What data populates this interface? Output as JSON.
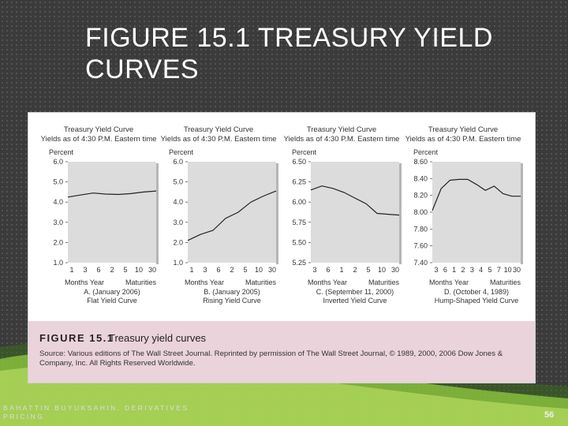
{
  "slide": {
    "title": "FIGURE 15.1 TREASURY YIELD CURVES",
    "footer": "BAHATTIN BUYUKSAHIN, DERIVATIVES PRICING",
    "page_number": "56",
    "colors": {
      "background": "#3b3b3b",
      "caption_bg": "#ead3da",
      "swoosh": "#8cc63f",
      "chart_bg": "#dcdcdc"
    }
  },
  "figure": {
    "label": "FIGURE 15.1",
    "title": "Treasury yield curves",
    "source": "Source: Various editions of The Wall Street Journal. Reprinted by permission of The Wall Street Journal, © 1989, 2000, 2006 Dow Jones & Company, Inc. All Rights Reserved Worldwide."
  },
  "chart_data": [
    {
      "type": "line",
      "header_title": "Treasury Yield Curve",
      "header_subtitle": "Yields as of 4:30 P.M. Eastern time",
      "ylabel": "Percent",
      "xlabel_left": "Months Year",
      "xlabel_right": "Maturities",
      "caption_line1": "A. (January 2006)",
      "caption_line2": "Flat Yield Curve",
      "x_ticks": [
        "1",
        "3",
        "6",
        "2",
        "5",
        "10",
        "30"
      ],
      "y_ticks": [
        "1.0",
        "2.0",
        "3.0",
        "4.0",
        "5.0",
        "6.0"
      ],
      "ylim": [
        1.0,
        6.0
      ],
      "y": [
        4.25,
        4.35,
        4.45,
        4.4,
        4.38,
        4.42,
        4.5,
        4.55
      ],
      "grid": false
    },
    {
      "type": "line",
      "header_title": "Treasury Yield Curve",
      "header_subtitle": "Yields as of 4:30 P.M. Eastern time",
      "ylabel": "Percent",
      "xlabel_left": "Months Year",
      "xlabel_right": "Maturities",
      "caption_line1": "B. (January 2005)",
      "caption_line2": "Rising Yield Curve",
      "x_ticks": [
        "1",
        "3",
        "6",
        "2",
        "5",
        "10",
        "30"
      ],
      "y_ticks": [
        "1.0",
        "2.0",
        "3.0",
        "4.0",
        "5.0",
        "6.0"
      ],
      "ylim": [
        1.0,
        6.0
      ],
      "y": [
        2.1,
        2.4,
        2.6,
        3.2,
        3.5,
        4.0,
        4.3,
        4.55
      ],
      "grid": false
    },
    {
      "type": "line",
      "header_title": "Treasury Yield Curve",
      "header_subtitle": "Yields as of 4:30 P.M. Eastern time",
      "ylabel": "Percent",
      "xlabel_left": "Months Year",
      "xlabel_right": "Maturities",
      "caption_line1": "C. (September 11, 2000)",
      "caption_line2": "Inverted Yield Curve",
      "x_ticks": [
        "3",
        "6",
        "1",
        "2",
        "5",
        "10",
        "30"
      ],
      "y_ticks": [
        "5.25",
        "5.50",
        "5.75",
        "6.00",
        "6.25",
        "6.50"
      ],
      "ylim": [
        5.25,
        6.5
      ],
      "y": [
        6.15,
        6.2,
        6.17,
        6.12,
        6.05,
        5.98,
        5.86,
        5.85,
        5.84
      ],
      "grid": false
    },
    {
      "type": "line",
      "header_title": "Treasury Yield Curve",
      "header_subtitle": "Yields as of 4:30 P.M. Eastern time",
      "ylabel": "Percent",
      "xlabel_left": "Months Year",
      "xlabel_right": "Maturities",
      "caption_line1": "D. (October 4, 1989)",
      "caption_line2": "Hump-Shaped Yield Curve",
      "x_ticks": [
        "3",
        "6",
        "1",
        "2",
        "3",
        "4",
        "5",
        "7",
        "10",
        "30"
      ],
      "y_ticks": [
        "7.40",
        "7.60",
        "7.80",
        "8.00",
        "8.20",
        "8.40",
        "8.60"
      ],
      "ylim": [
        7.4,
        8.6
      ],
      "y": [
        8.02,
        8.28,
        8.38,
        8.39,
        8.39,
        8.33,
        8.26,
        8.31,
        8.22,
        8.19,
        8.19
      ],
      "grid": false
    }
  ]
}
